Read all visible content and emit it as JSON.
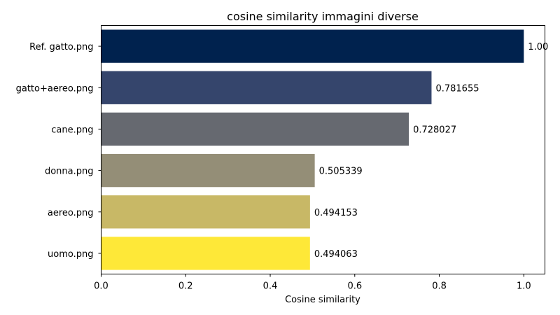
{
  "chart_data": {
    "type": "bar",
    "orientation": "horizontal",
    "title": "cosine similarity immagini diverse",
    "xlabel": "Cosine similarity",
    "ylabel": "",
    "xlim": [
      0,
      1.05
    ],
    "xticks": [
      0.0,
      0.2,
      0.4,
      0.6,
      0.8,
      1.0
    ],
    "xtick_labels": [
      "0.0",
      "0.2",
      "0.4",
      "0.6",
      "0.8",
      "1.0"
    ],
    "grid": false,
    "categories": [
      "Ref. gatto.png",
      "gatto+aereo.png",
      "cane.png",
      "donna.png",
      "aereo.png",
      "uomo.png"
    ],
    "values": [
      1.0,
      0.781655,
      0.728027,
      0.505339,
      0.494153,
      0.494063
    ],
    "value_labels": [
      "1.00",
      "0.781655",
      "0.728027",
      "0.505339",
      "0.494153",
      "0.494063"
    ],
    "colors": [
      "#00224e",
      "#35456c",
      "#666970",
      "#948e77",
      "#c8b866",
      "#fee838"
    ]
  }
}
